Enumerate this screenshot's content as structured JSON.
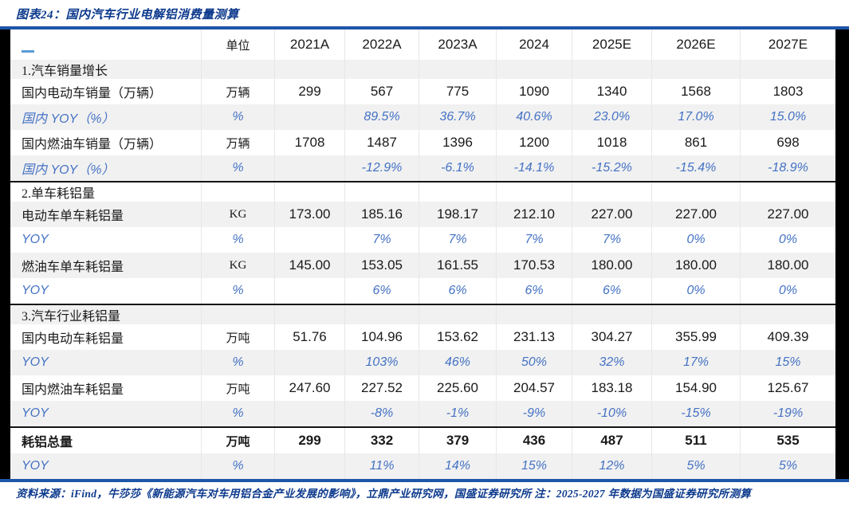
{
  "title": "图表24：国内汽车行业电解铝消费量测算",
  "footer": "资料来源：iFind，牛莎莎《新能源汽车对车用铝合金产业发展的影响》，立鼎产业研究网，国盛证券研究所  注：2025-2027 年数据为国盛证券研究所测算",
  "colors": {
    "title_blue": "#0d3a8d",
    "rule_blue": "#1d56a8",
    "yoy_blue": "#4472c4",
    "band_gray": "#f1f1f1",
    "marker_blue": "#5b9bd5",
    "frame_black": "#000000"
  },
  "table": {
    "unit_header": "单位",
    "year_headers": [
      "2021A",
      "2022A",
      "2023A",
      "2024",
      "2025E",
      "2026E",
      "2027E"
    ],
    "rows": [
      {
        "type": "section",
        "label": "1.汽车销量增长",
        "unit": "",
        "values": [
          "",
          "",
          "",
          "",
          "",
          "",
          ""
        ]
      },
      {
        "type": "data",
        "label": "国内电动车销量（万辆）",
        "unit": "万辆",
        "values": [
          "299",
          "567",
          "775",
          "1090",
          "1340",
          "1568",
          "1803"
        ]
      },
      {
        "type": "yoy",
        "label": "国内 YOY（%）",
        "unit": "%",
        "values": [
          "",
          "89.5%",
          "36.7%",
          "40.6%",
          "23.0%",
          "17.0%",
          "15.0%"
        ]
      },
      {
        "type": "data",
        "label": "国内燃油车销量（万辆）",
        "unit": "万辆",
        "values": [
          "1708",
          "1487",
          "1396",
          "1200",
          "1018",
          "861",
          "698"
        ]
      },
      {
        "type": "yoy",
        "label": "国内 YOY（%）",
        "unit": "%",
        "values": [
          "",
          "-12.9%",
          "-6.1%",
          "-14.1%",
          "-15.2%",
          "-15.4%",
          "-18.9%"
        ]
      },
      {
        "type": "section",
        "label": "2.单车耗铝量",
        "unit": "",
        "values": [
          "",
          "",
          "",
          "",
          "",
          "",
          ""
        ],
        "divider_above": true
      },
      {
        "type": "data",
        "label": "电动车单车耗铝量",
        "unit": "KG",
        "values": [
          "173.00",
          "185.16",
          "198.17",
          "212.10",
          "227.00",
          "227.00",
          "227.00"
        ]
      },
      {
        "type": "yoy",
        "label": "YOY",
        "unit": "%",
        "values": [
          "",
          "7%",
          "7%",
          "7%",
          "7%",
          "0%",
          "0%"
        ]
      },
      {
        "type": "data",
        "label": "燃油车单车耗铝量",
        "unit": "KG",
        "values": [
          "145.00",
          "153.05",
          "161.55",
          "170.53",
          "180.00",
          "180.00",
          "180.00"
        ]
      },
      {
        "type": "yoy",
        "label": "YOY",
        "unit": "%",
        "values": [
          "",
          "6%",
          "6%",
          "6%",
          "6%",
          "0%",
          "0%"
        ]
      },
      {
        "type": "section",
        "label": "3.汽车行业耗铝量",
        "unit": "",
        "values": [
          "",
          "",
          "",
          "",
          "",
          "",
          ""
        ],
        "divider_above": true
      },
      {
        "type": "data",
        "label": "国内电动车耗铝量",
        "unit": "万吨",
        "values": [
          "51.76",
          "104.96",
          "153.62",
          "231.13",
          "304.27",
          "355.99",
          "409.39"
        ]
      },
      {
        "type": "yoy",
        "label": "YOY",
        "unit": "%",
        "values": [
          "",
          "103%",
          "46%",
          "50%",
          "32%",
          "17%",
          "15%"
        ]
      },
      {
        "type": "data",
        "label": "国内燃油车耗铝量",
        "unit": "万吨",
        "values": [
          "247.60",
          "227.52",
          "225.60",
          "204.57",
          "183.18",
          "154.90",
          "125.67"
        ]
      },
      {
        "type": "yoy",
        "label": "YOY",
        "unit": "%",
        "values": [
          "",
          "-8%",
          "-1%",
          "-9%",
          "-10%",
          "-15%",
          "-19%"
        ]
      },
      {
        "type": "total",
        "label": "耗铝总量",
        "unit": "万吨",
        "values": [
          "299",
          "332",
          "379",
          "436",
          "487",
          "511",
          "535"
        ],
        "divider_above": true
      },
      {
        "type": "yoy",
        "label": "YOY",
        "unit": "%",
        "values": [
          "",
          "11%",
          "14%",
          "15%",
          "12%",
          "5%",
          "5%"
        ]
      }
    ]
  }
}
